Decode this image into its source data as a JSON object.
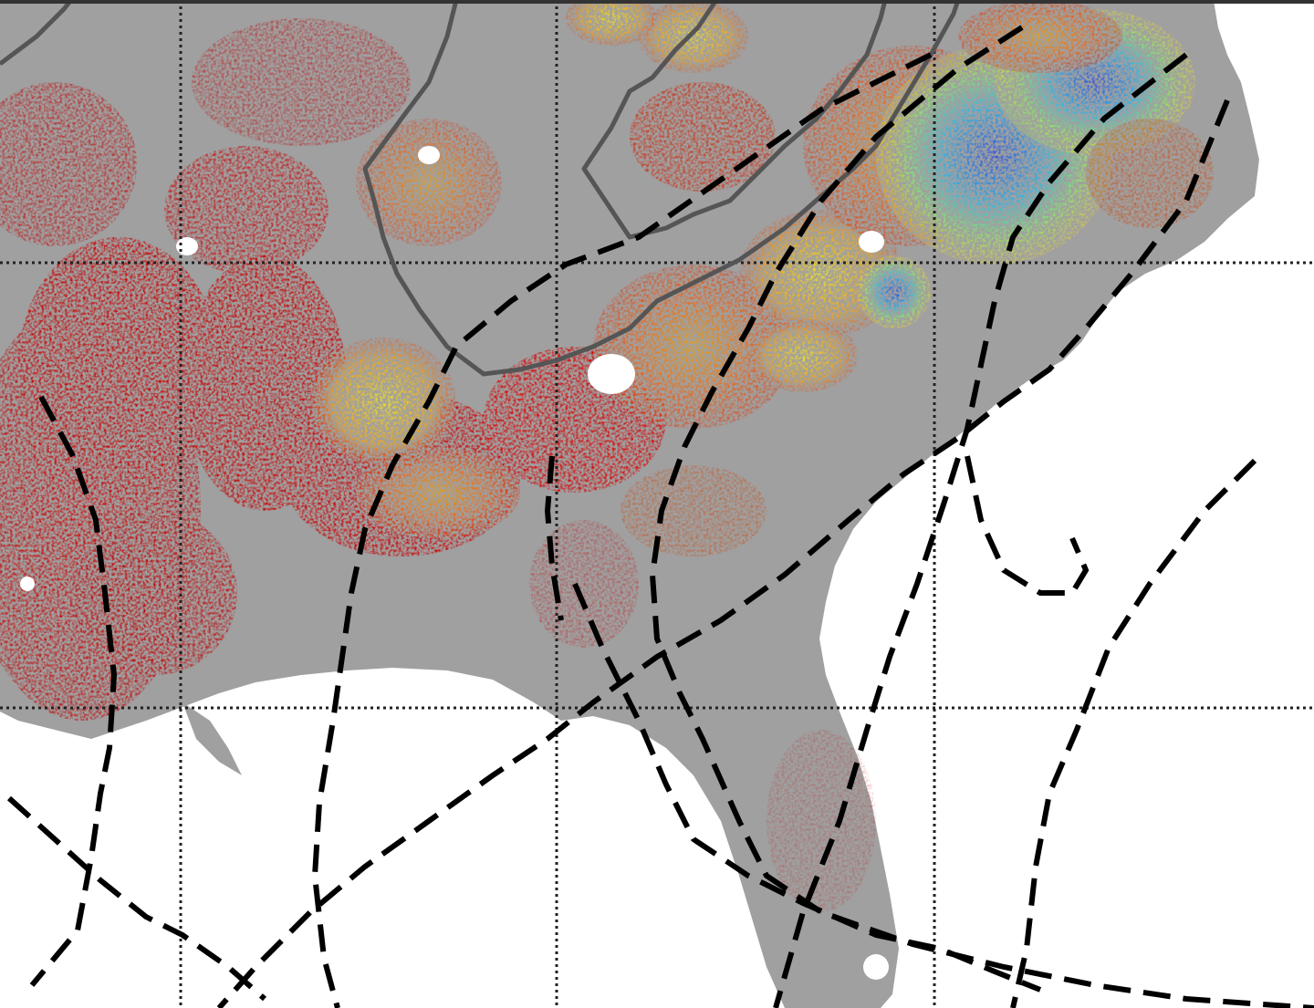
{
  "map": {
    "type": "gridded-raster-map",
    "colors": {
      "background": "#ffffff",
      "land": "#a0a0a0",
      "grid": "#222222",
      "track_lines": "#000000",
      "boundary": "#555555",
      "scale_low": "#1e2fd6",
      "scale_mid_low": "#18c8e8",
      "scale_mid": "#7fe86a",
      "scale_mid_high": "#f6e81c",
      "scale_high": "#f07a12",
      "scale_max": "#c80000"
    },
    "grid": {
      "line_style": "dotted",
      "visible": true
    },
    "tracks": {
      "line_style": "dashed",
      "count": 10
    },
    "boundaries": {
      "line_style": "solid",
      "count": 4
    }
  }
}
